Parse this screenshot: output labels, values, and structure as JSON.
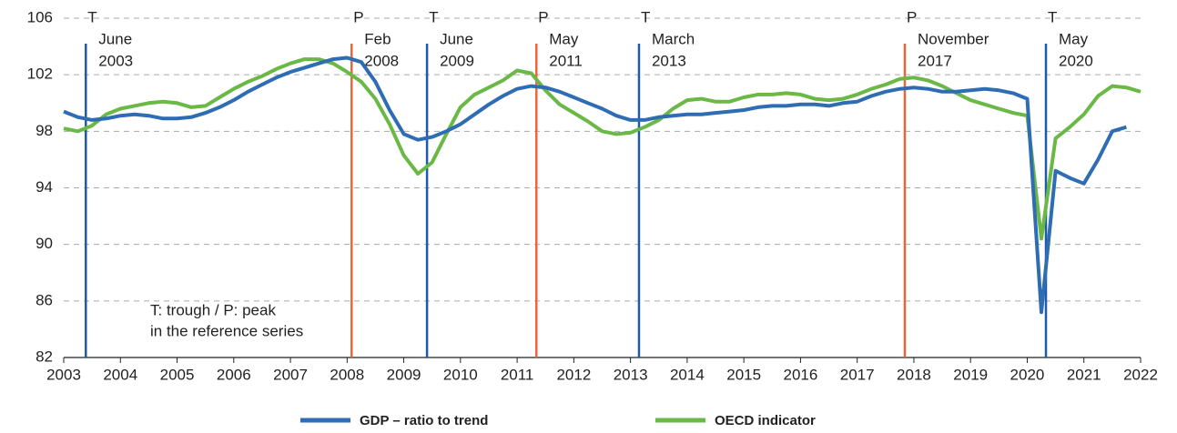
{
  "chart_data": {
    "type": "line",
    "x": [
      2003,
      2003.25,
      2003.5,
      2003.75,
      2004,
      2004.25,
      2004.5,
      2004.75,
      2005,
      2005.25,
      2005.5,
      2005.75,
      2006,
      2006.25,
      2006.5,
      2006.75,
      2007,
      2007.25,
      2007.5,
      2007.75,
      2008,
      2008.25,
      2008.5,
      2008.75,
      2009,
      2009.25,
      2009.5,
      2009.75,
      2010,
      2010.25,
      2010.5,
      2010.75,
      2011,
      2011.25,
      2011.5,
      2011.75,
      2012,
      2012.25,
      2012.5,
      2012.75,
      2013,
      2013.25,
      2013.5,
      2013.75,
      2014,
      2014.25,
      2014.5,
      2014.75,
      2015,
      2015.25,
      2015.5,
      2015.75,
      2016,
      2016.25,
      2016.5,
      2016.75,
      2017,
      2017.25,
      2017.5,
      2017.75,
      2018,
      2018.25,
      2018.5,
      2018.75,
      2019,
      2019.25,
      2019.5,
      2019.75,
      2020,
      2020.25,
      2020.5,
      2020.75,
      2021,
      2021.25,
      2021.5,
      2021.75,
      2022
    ],
    "series": [
      {
        "name": "GDP – ratio to trend",
        "color": "#2e6db4",
        "values": [
          99.4,
          99.0,
          98.8,
          98.9,
          99.1,
          99.2,
          99.1,
          98.9,
          98.9,
          99.0,
          99.3,
          99.7,
          100.2,
          100.8,
          101.3,
          101.8,
          102.2,
          102.5,
          102.8,
          103.1,
          103.2,
          102.9,
          101.5,
          99.5,
          97.8,
          97.4,
          97.6,
          98.0,
          98.5,
          99.2,
          99.9,
          100.5,
          101.0,
          101.2,
          101.1,
          100.8,
          100.4,
          100.0,
          99.6,
          99.1,
          98.8,
          98.8,
          99.0,
          99.1,
          99.2,
          99.2,
          99.3,
          99.4,
          99.5,
          99.7,
          99.8,
          99.8,
          99.9,
          99.9,
          99.8,
          100.0,
          100.1,
          100.5,
          100.8,
          101.0,
          101.1,
          101.0,
          100.8,
          100.8,
          100.9,
          101.0,
          100.9,
          100.7,
          100.3,
          85.2,
          95.2,
          94.7,
          94.3,
          96.0,
          98.0,
          98.3,
          null
        ]
      },
      {
        "name": "OECD indicator",
        "color": "#6ab845",
        "values": [
          98.2,
          98.0,
          98.4,
          99.2,
          99.6,
          99.8,
          100.0,
          100.1,
          100.0,
          99.7,
          99.8,
          100.4,
          101.0,
          101.5,
          101.9,
          102.4,
          102.8,
          103.1,
          103.1,
          102.8,
          102.2,
          101.5,
          100.3,
          98.5,
          96.3,
          95.0,
          95.8,
          97.8,
          99.7,
          100.6,
          101.1,
          101.6,
          102.3,
          102.1,
          100.9,
          99.9,
          99.3,
          98.7,
          98.0,
          97.8,
          97.9,
          98.3,
          98.8,
          99.6,
          100.2,
          100.3,
          100.1,
          100.1,
          100.4,
          100.6,
          100.6,
          100.7,
          100.6,
          100.3,
          100.2,
          100.3,
          100.6,
          101.0,
          101.3,
          101.7,
          101.8,
          101.6,
          101.2,
          100.7,
          100.2,
          99.9,
          99.6,
          99.3,
          99.1,
          90.4,
          97.5,
          98.3,
          99.2,
          100.5,
          101.2,
          101.1,
          100.8
        ]
      }
    ],
    "xlim": [
      2003,
      2022
    ],
    "xticks": [
      2003,
      2004,
      2005,
      2006,
      2007,
      2008,
      2009,
      2010,
      2011,
      2012,
      2013,
      2014,
      2015,
      2016,
      2017,
      2018,
      2019,
      2020,
      2021,
      2022
    ],
    "ylim": [
      82,
      106
    ],
    "yticks": [
      82,
      86,
      90,
      94,
      98,
      102,
      106
    ],
    "grid": true,
    "reference_lines": [
      {
        "x": 2003.39,
        "kind": "T",
        "lines": [
          "June",
          "2003"
        ],
        "color": "#1f5aa6"
      },
      {
        "x": 2008.08,
        "kind": "P",
        "lines": [
          "Feb",
          "2008"
        ],
        "color": "#e8663c"
      },
      {
        "x": 2009.41,
        "kind": "T",
        "lines": [
          "June",
          "2009"
        ],
        "color": "#1f5aa6"
      },
      {
        "x": 2011.34,
        "kind": "P",
        "lines": [
          "May",
          "2011"
        ],
        "color": "#e8663c"
      },
      {
        "x": 2013.15,
        "kind": "T",
        "lines": [
          "March",
          "2013"
        ],
        "color": "#1f5aa6"
      },
      {
        "x": 2017.84,
        "kind": "P",
        "lines": [
          "November",
          "2017"
        ],
        "color": "#e8663c"
      },
      {
        "x": 2020.33,
        "kind": "T",
        "lines": [
          "May",
          "2020"
        ],
        "color": "#1f5aa6"
      }
    ],
    "note": [
      "T: trough / P: peak",
      "in the reference series"
    ]
  }
}
